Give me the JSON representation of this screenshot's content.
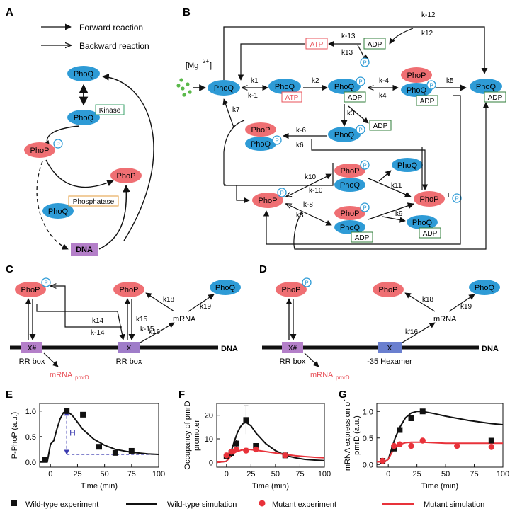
{
  "panels": {
    "A": "A",
    "B": "B",
    "C": "C",
    "D": "D",
    "E": "E",
    "F": "F",
    "G": "G"
  },
  "colors": {
    "phoq": "#2e9bd6",
    "phop": "#ef6f73",
    "atp": "#e8525a",
    "adp_border": "#2f7d3a",
    "kinase_border": "#3aa06a",
    "phosphatase_border": "#e39b3b",
    "dna_box": "#b47fc9",
    "mutant": "#e8323a",
    "mg": "#5ab94a",
    "site_box": "#9f7cc9",
    "hexamer_box": "#6a7fcf"
  },
  "panel_a": {
    "legend_forward": "Forward reaction",
    "legend_backward": "Backward reaction",
    "phoq": "PhoQ",
    "phop": "PhoP",
    "kinase": "Kinase",
    "phosphatase": "Phosphatase",
    "dna": "DNA",
    "p": "P"
  },
  "panel_b": {
    "mg": "[Mg",
    "mg_sup": "2+",
    "phoq": "PhoQ",
    "phop": "PhoP",
    "atp": "ATP",
    "adp": "ADP",
    "p": "P",
    "plus": "+",
    "rates": {
      "k1": "k1",
      "km1": "k-1",
      "k2": "k2",
      "k3": "k3",
      "k4": "k4",
      "km4": "k-4",
      "k5": "k5",
      "k6": "k6",
      "km6": "k-6",
      "k7": "k7",
      "k8": "k8",
      "km8": "k-8",
      "k9": "k9",
      "k10": "k10",
      "km10": "k-10",
      "k11": "k11",
      "k12": "k12",
      "km12": "k-12",
      "k13": "k13",
      "km13": "k-13"
    }
  },
  "panel_c": {
    "phop": "PhoP",
    "phoq": "PhoQ",
    "p": "P",
    "xh": "X#",
    "x": "X",
    "rr_box": "RR box",
    "mrna_pmrd": "mRNA",
    "mrna_sub": "pmrD",
    "mrna": "mRNA",
    "dna": "DNA",
    "rates": {
      "k14": "k14",
      "km14": "k-14",
      "k15": "k15",
      "km15": "k-15",
      "k16": "k16",
      "k18": "k18",
      "k19": "k19"
    }
  },
  "panel_d": {
    "phop": "PhoP",
    "phoq": "PhoQ",
    "p": "P",
    "xh": "X#",
    "x": "X",
    "rr_box": "RR box",
    "hexamer": "-35 Hexamer",
    "mrna_pmrd": "mRNA",
    "mrna_sub": "pmrD",
    "mrna": "mRNA",
    "dna": "DNA",
    "rates": {
      "k16p": "k'16",
      "k18": "k18",
      "k19": "k19"
    }
  },
  "chart_data": [
    {
      "type": "line",
      "panel": "E",
      "ylabel": "P-PhoP (a.u.)",
      "xlabel": "Time (min)",
      "xlim": [
        -10,
        100
      ],
      "ylim": [
        -0.1,
        1.15
      ],
      "xticks": [
        0,
        25,
        50,
        75,
        100
      ],
      "yticks": [
        0.0,
        0.5,
        1.0
      ],
      "ytick_labels": [
        "0.0",
        "0.5",
        "1.0"
      ],
      "annotation": "H",
      "series": [
        {
          "kind": "wt_exp",
          "x": [
            -5,
            15,
            30,
            45,
            60,
            75
          ],
          "y": [
            0.05,
            1.0,
            0.93,
            0.3,
            0.18,
            0.22
          ]
        },
        {
          "kind": "wt_sim",
          "x": [
            -10,
            -3,
            0,
            3,
            6,
            9,
            12,
            15,
            20,
            25,
            30,
            40,
            50,
            60,
            70,
            80,
            90,
            100
          ],
          "y": [
            0.0,
            0.0,
            0.35,
            0.42,
            0.65,
            0.85,
            0.97,
            1.0,
            0.92,
            0.78,
            0.64,
            0.45,
            0.33,
            0.25,
            0.21,
            0.18,
            0.16,
            0.15
          ]
        }
      ]
    },
    {
      "type": "line",
      "panel": "F",
      "ylabel": "Occupancy of pmrD promoter",
      "xlabel": "Time (min)",
      "xlim": [
        -10,
        100
      ],
      "ylim": [
        -2,
        25
      ],
      "xticks": [
        0,
        25,
        50,
        75,
        100
      ],
      "yticks": [
        0,
        10,
        20
      ],
      "ytick_labels": [
        "0",
        "10",
        "20"
      ],
      "series": [
        {
          "kind": "wt_exp",
          "x": [
            0,
            5,
            10,
            20,
            30,
            60
          ],
          "y": [
            2.5,
            4,
            8,
            18,
            7,
            3
          ],
          "err": [
            1,
            1.5,
            1.5,
            6,
            1,
            0.5
          ]
        },
        {
          "kind": "wt_sim",
          "x": [
            -10,
            0,
            2,
            5,
            8,
            11,
            14,
            17,
            20,
            25,
            30,
            40,
            50,
            60,
            70,
            80,
            90,
            100
          ],
          "y": [
            0,
            0.5,
            2,
            5,
            9,
            12.5,
            15,
            16.5,
            17,
            15.5,
            12.5,
            8,
            5,
            3,
            2,
            1.3,
            1,
            0.8
          ]
        },
        {
          "kind": "mut_exp",
          "x": [
            0,
            5,
            10,
            20,
            30,
            60
          ],
          "y": [
            3,
            4.5,
            5.5,
            5,
            5.5,
            3
          ],
          "err": [
            1,
            1,
            1,
            1,
            1,
            0.5
          ]
        },
        {
          "kind": "mut_sim",
          "x": [
            -10,
            0,
            3,
            6,
            10,
            15,
            20,
            25,
            30,
            40,
            50,
            60,
            70,
            80,
            90,
            100
          ],
          "y": [
            0,
            0.5,
            2,
            3.5,
            4.5,
            5.2,
            5.5,
            5.4,
            5.2,
            4.6,
            4,
            3.4,
            2.9,
            2.5,
            2.2,
            2
          ]
        }
      ]
    },
    {
      "type": "line",
      "panel": "G",
      "ylabel": "mRNA expression of pmrD (a.u.)",
      "xlabel": "Time (min)",
      "xlim": [
        -10,
        100
      ],
      "ylim": [
        -0.05,
        1.15
      ],
      "xticks": [
        0,
        25,
        50,
        75,
        100
      ],
      "yticks": [
        0.0,
        0.5,
        1.0
      ],
      "ytick_labels": [
        "0.0",
        "0.5",
        "1.0"
      ],
      "series": [
        {
          "kind": "wt_exp",
          "x": [
            -5,
            5,
            10,
            20,
            30,
            90
          ],
          "y": [
            0.07,
            0.3,
            0.65,
            0.87,
            1.0,
            0.45
          ]
        },
        {
          "kind": "wt_sim",
          "x": [
            -10,
            -3,
            0,
            3,
            6,
            10,
            15,
            20,
            25,
            30,
            40,
            50,
            60,
            70,
            80,
            90,
            100
          ],
          "y": [
            0.05,
            0.05,
            0.1,
            0.3,
            0.5,
            0.7,
            0.88,
            0.97,
            1.0,
            1.0,
            0.96,
            0.91,
            0.87,
            0.83,
            0.8,
            0.77,
            0.75
          ]
        },
        {
          "kind": "mut_exp",
          "x": [
            -5,
            5,
            10,
            20,
            30,
            60,
            90
          ],
          "y": [
            0.07,
            0.35,
            0.38,
            0.35,
            0.45,
            0.35,
            0.33
          ]
        },
        {
          "kind": "mut_sim",
          "x": [
            -10,
            -3,
            0,
            3,
            6,
            10,
            15,
            20,
            25,
            30,
            40,
            50,
            60,
            70,
            80,
            90,
            100
          ],
          "y": [
            0.05,
            0.05,
            0.1,
            0.22,
            0.32,
            0.38,
            0.41,
            0.42,
            0.42,
            0.42,
            0.41,
            0.4,
            0.4,
            0.4,
            0.4,
            0.4,
            0.4
          ]
        }
      ]
    }
  ],
  "legend": {
    "wt_exp": "Wild-type experiment",
    "wt_sim": "Wild-type simulation",
    "mut_exp": "Mutant experiment",
    "mut_sim": "Mutant simulation"
  }
}
